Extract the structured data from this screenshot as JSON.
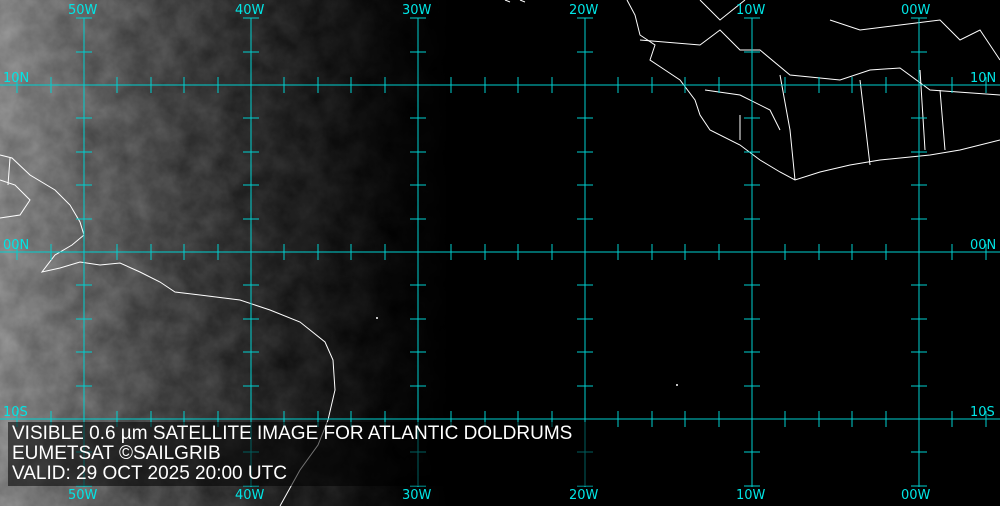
{
  "map": {
    "longitude_labels": [
      "50W",
      "40W",
      "30W",
      "20W",
      "10W",
      "00W"
    ],
    "latitude_labels": [
      "10N",
      "00N",
      "10S"
    ],
    "grid_color": "#00d0d0",
    "label_color": "#00e5e5",
    "coastline_color": "#ffffff"
  },
  "caption": {
    "line1": "VISIBLE 0.6 µm SATELLITE IMAGE FOR ATLANTIC DOLDRUMS",
    "line2": "EUMETSAT ©SAILGRIB",
    "line3": "VALID:  29 OCT 2025 20:00 UTC"
  }
}
